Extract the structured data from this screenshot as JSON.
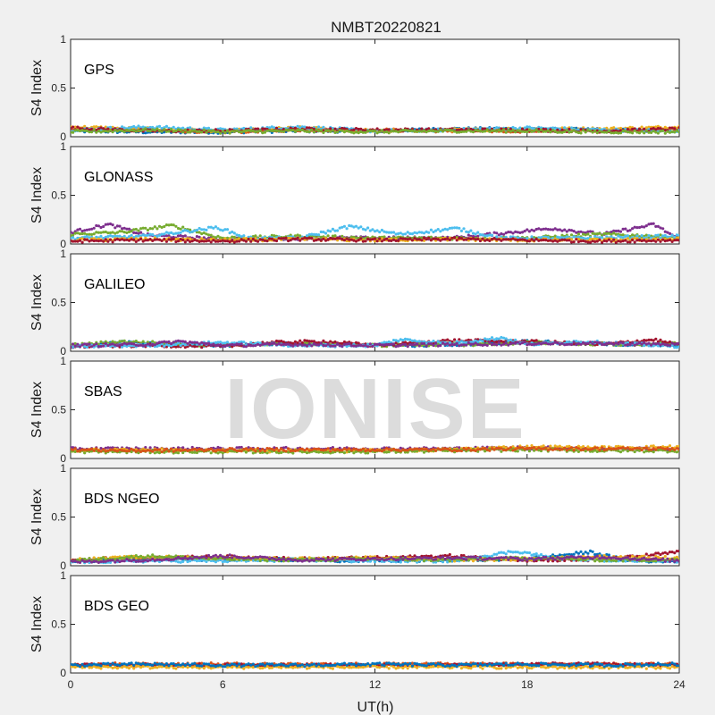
{
  "chart_data": {
    "type": "scatter",
    "title": "NMBT20220821",
    "xlabel": "UT(h)",
    "ylabel": "S4 Index",
    "xlim": [
      0,
      24
    ],
    "ylim": [
      0,
      1
    ],
    "xticks": [
      0,
      6,
      12,
      18,
      24
    ],
    "yticks": [
      0,
      0.5,
      1
    ],
    "xtick_labels": [
      "0",
      "6",
      "12",
      "18",
      "24"
    ],
    "ytick_labels": [
      "0",
      "0.5",
      "1"
    ],
    "grid": false,
    "watermark": "IONISE",
    "series_colors": [
      "#0072BD",
      "#D95319",
      "#EDB120",
      "#7E2F8E",
      "#77AC30",
      "#4DBEEE",
      "#A2142F"
    ],
    "panels": [
      {
        "label": "GPS",
        "series": [
          {
            "color": "#0072BD",
            "x": [
              0,
              3,
              6,
              9,
              12,
              15,
              18,
              21,
              24
            ],
            "y": [
              0.06,
              0.05,
              0.05,
              0.06,
              0.06,
              0.08,
              0.08,
              0.07,
              0.06
            ]
          },
          {
            "color": "#D95319",
            "x": [
              0,
              3,
              6,
              9,
              12,
              15,
              18,
              21,
              24
            ],
            "y": [
              0.08,
              0.07,
              0.05,
              0.07,
              0.07,
              0.06,
              0.06,
              0.07,
              0.08
            ]
          },
          {
            "color": "#EDB120",
            "x": [
              0,
              3,
              6,
              9,
              12,
              15,
              18,
              21,
              24
            ],
            "y": [
              0.1,
              0.08,
              0.06,
              0.09,
              0.06,
              0.07,
              0.08,
              0.08,
              0.1
            ]
          },
          {
            "color": "#4DBEEE",
            "x": [
              0,
              3,
              6,
              9,
              12,
              15,
              18,
              21,
              24
            ],
            "y": [
              0.07,
              0.1,
              0.07,
              0.1,
              0.06,
              0.07,
              0.09,
              0.07,
              0.06
            ]
          },
          {
            "color": "#A2142F",
            "x": [
              0,
              3,
              6,
              9,
              12,
              15,
              18,
              21,
              24
            ],
            "y": [
              0.09,
              0.06,
              0.06,
              0.08,
              0.07,
              0.07,
              0.07,
              0.06,
              0.08
            ]
          },
          {
            "color": "#77AC30",
            "x": [
              0,
              3,
              6,
              9,
              12,
              15,
              18,
              21,
              24
            ],
            "y": [
              0.05,
              0.07,
              0.05,
              0.06,
              0.05,
              0.06,
              0.06,
              0.05,
              0.05
            ]
          }
        ]
      },
      {
        "label": "GLONASS",
        "series": [
          {
            "color": "#7E2F8E",
            "x": [
              0,
              1.5,
              3,
              6,
              9,
              12,
              15,
              19,
              21,
              23,
              24
            ],
            "y": [
              0.12,
              0.2,
              0.09,
              0.05,
              0.06,
              0.06,
              0.06,
              0.16,
              0.1,
              0.2,
              0.05
            ]
          },
          {
            "color": "#77AC30",
            "x": [
              0,
              2,
              4,
              6,
              9,
              12,
              15,
              18,
              21,
              24
            ],
            "y": [
              0.1,
              0.12,
              0.19,
              0.06,
              0.08,
              0.06,
              0.06,
              0.06,
              0.1,
              0.07
            ]
          },
          {
            "color": "#4DBEEE",
            "x": [
              0,
              3,
              5.8,
              7,
              9,
              11,
              13,
              15.2,
              17,
              20,
              24
            ],
            "y": [
              0.06,
              0.08,
              0.17,
              0.06,
              0.06,
              0.18,
              0.1,
              0.16,
              0.06,
              0.06,
              0.08
            ]
          },
          {
            "color": "#EDB120",
            "x": [
              0,
              3,
              6,
              9,
              12,
              15,
              18,
              21,
              24
            ],
            "y": [
              0.04,
              0.05,
              0.04,
              0.05,
              0.04,
              0.05,
              0.04,
              0.04,
              0.05
            ]
          },
          {
            "color": "#A2142F",
            "x": [
              0,
              3,
              6,
              9,
              12,
              15,
              18,
              21,
              24
            ],
            "y": [
              0.03,
              0.04,
              0.03,
              0.05,
              0.04,
              0.05,
              0.04,
              0.03,
              0.04
            ]
          }
        ]
      },
      {
        "label": "GALILEO",
        "series": [
          {
            "color": "#0072BD",
            "x": [
              0,
              2,
              4,
              6,
              8,
              10,
              12,
              14,
              16,
              18,
              20,
              22,
              24
            ],
            "y": [
              0.05,
              0.09,
              0.07,
              0.06,
              0.08,
              0.06,
              0.07,
              0.06,
              0.08,
              0.1,
              0.08,
              0.07,
              0.06
            ]
          },
          {
            "color": "#77AC30",
            "x": [
              0,
              2,
              4,
              6,
              8,
              10,
              12,
              14,
              16,
              18,
              20,
              22,
              24
            ],
            "y": [
              0.06,
              0.1,
              0.08,
              0.06,
              0.07,
              0.08,
              0.06,
              0.07,
              0.07,
              0.09,
              0.08,
              0.07,
              0.08
            ]
          },
          {
            "color": "#A2142F",
            "x": [
              0,
              3,
              6,
              8,
              10,
              12,
              15,
              18,
              21,
              23,
              24
            ],
            "y": [
              0.05,
              0.06,
              0.05,
              0.09,
              0.1,
              0.06,
              0.11,
              0.1,
              0.07,
              0.12,
              0.06
            ]
          },
          {
            "color": "#4DBEEE",
            "x": [
              0,
              3,
              6,
              9,
              12,
              13,
              15,
              17,
              18,
              20,
              24
            ],
            "y": [
              0.05,
              0.06,
              0.09,
              0.06,
              0.06,
              0.12,
              0.08,
              0.14,
              0.07,
              0.1,
              0.05
            ]
          },
          {
            "color": "#7E2F8E",
            "x": [
              0,
              3,
              4.3,
              6,
              9,
              12,
              15,
              18,
              21,
              24
            ],
            "y": [
              0.06,
              0.07,
              0.1,
              0.06,
              0.07,
              0.06,
              0.07,
              0.08,
              0.08,
              0.07
            ]
          }
        ]
      },
      {
        "label": "SBAS",
        "series": [
          {
            "color": "#7E2F8E",
            "x": [
              0,
              3,
              6,
              9,
              12,
              15,
              18,
              21,
              24
            ],
            "y": [
              0.1,
              0.1,
              0.1,
              0.1,
              0.1,
              0.1,
              0.11,
              0.1,
              0.1
            ]
          },
          {
            "color": "#EDB120",
            "x": [
              0,
              3,
              6,
              9,
              12,
              15,
              18,
              21,
              24
            ],
            "y": [
              0.08,
              0.09,
              0.08,
              0.08,
              0.08,
              0.09,
              0.12,
              0.11,
              0.12
            ]
          },
          {
            "color": "#77AC30",
            "x": [
              0,
              3,
              6,
              9,
              12,
              15,
              18,
              21,
              24
            ],
            "y": [
              0.07,
              0.07,
              0.07,
              0.07,
              0.07,
              0.08,
              0.09,
              0.08,
              0.08
            ]
          },
          {
            "color": "#D95319",
            "x": [
              0,
              3,
              6,
              9,
              12,
              15,
              18,
              21,
              24
            ],
            "y": [
              0.09,
              0.08,
              0.09,
              0.09,
              0.09,
              0.09,
              0.1,
              0.1,
              0.1
            ]
          }
        ]
      },
      {
        "label": "BDS NGEO",
        "series": [
          {
            "color": "#0072BD",
            "x": [
              0,
              3,
              6,
              9,
              12,
              15,
              18,
              20.5,
              22,
              24
            ],
            "y": [
              0.05,
              0.06,
              0.07,
              0.06,
              0.05,
              0.06,
              0.07,
              0.14,
              0.05,
              0.05
            ]
          },
          {
            "color": "#A2142F",
            "x": [
              0,
              3,
              6,
              9,
              12,
              15,
              18,
              21,
              24
            ],
            "y": [
              0.06,
              0.08,
              0.09,
              0.07,
              0.08,
              0.1,
              0.06,
              0.06,
              0.14
            ]
          },
          {
            "color": "#4DBEEE",
            "x": [
              0,
              3,
              6,
              9,
              12,
              15,
              17.6,
              19,
              21,
              24
            ],
            "y": [
              0.04,
              0.05,
              0.05,
              0.06,
              0.05,
              0.05,
              0.15,
              0.08,
              0.06,
              0.05
            ]
          },
          {
            "color": "#EDB120",
            "x": [
              0,
              3,
              6,
              9,
              12,
              15,
              18,
              21,
              24
            ],
            "y": [
              0.06,
              0.09,
              0.08,
              0.07,
              0.08,
              0.06,
              0.07,
              0.09,
              0.08
            ]
          },
          {
            "color": "#77AC30",
            "x": [
              0,
              3,
              6,
              9,
              12,
              15,
              18,
              21,
              24
            ],
            "y": [
              0.05,
              0.1,
              0.07,
              0.06,
              0.07,
              0.06,
              0.08,
              0.06,
              0.06
            ]
          },
          {
            "color": "#7E2F8E",
            "x": [
              0,
              3,
              6,
              9,
              12,
              15,
              18,
              21,
              24
            ],
            "y": [
              0.04,
              0.06,
              0.1,
              0.06,
              0.07,
              0.08,
              0.07,
              0.09,
              0.05
            ]
          }
        ]
      },
      {
        "label": "BDS GEO",
        "series": [
          {
            "color": "#D95319",
            "x": [
              0,
              3,
              6,
              9,
              12,
              15,
              18,
              21,
              24
            ],
            "y": [
              0.09,
              0.09,
              0.09,
              0.09,
              0.09,
              0.09,
              0.09,
              0.09,
              0.09
            ]
          },
          {
            "color": "#A2142F",
            "x": [
              0,
              3,
              6,
              9,
              12,
              15,
              18,
              21,
              24
            ],
            "y": [
              0.08,
              0.08,
              0.08,
              0.08,
              0.08,
              0.08,
              0.09,
              0.09,
              0.08
            ]
          },
          {
            "color": "#EDB120",
            "x": [
              0,
              3,
              6,
              9,
              12,
              15,
              18,
              21,
              24
            ],
            "y": [
              0.06,
              0.06,
              0.06,
              0.06,
              0.06,
              0.06,
              0.06,
              0.06,
              0.06
            ]
          },
          {
            "color": "#0072BD",
            "x": [
              0,
              3,
              6,
              9,
              12,
              15,
              18,
              21,
              24
            ],
            "y": [
              0.08,
              0.09,
              0.08,
              0.08,
              0.09,
              0.08,
              0.09,
              0.08,
              0.09
            ]
          }
        ]
      }
    ]
  }
}
